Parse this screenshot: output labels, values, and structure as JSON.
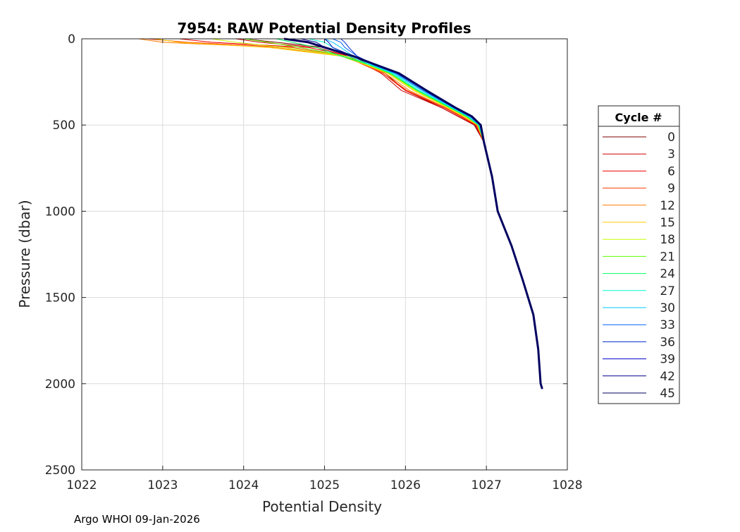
{
  "chart_data": {
    "type": "line",
    "title": "7954: RAW Potential Density Profiles",
    "xlabel": "Potential Density",
    "ylabel": "Pressure (dbar)",
    "xlim": [
      1022,
      1028
    ],
    "ylim": [
      0,
      2500
    ],
    "y_reversed": true,
    "grid": true,
    "xticks": [
      "1022",
      "1023",
      "1024",
      "1025",
      "1026",
      "1027",
      "1028"
    ],
    "yticks": [
      "0",
      "500",
      "1000",
      "1500",
      "2000",
      "2500"
    ],
    "legend": {
      "title": "Cycle #",
      "placement": "right-outside"
    },
    "pressure": [
      0,
      20,
      50,
      100,
      150,
      200,
      300,
      400,
      450,
      500,
      600,
      800,
      1000,
      1200,
      1400,
      1600,
      1800,
      2000,
      2030
    ],
    "series": [
      {
        "name": "0",
        "color": "#800000",
        "density": [
          1024.0,
          1024.4,
          1025.0,
          1025.35,
          1025.55,
          1025.75,
          1026.0,
          1026.45,
          1026.65,
          1026.85,
          1026.97,
          1027.07,
          1027.14,
          1027.31,
          1027.45,
          1027.58,
          1027.64,
          1027.67,
          1027.69
        ]
      },
      {
        "name": "3",
        "color": "#d00000",
        "density": [
          1023.9,
          1024.2,
          1024.9,
          1025.3,
          1025.5,
          1025.7,
          1025.95,
          1026.45,
          1026.65,
          1026.86,
          1026.97,
          1027.07,
          1027.14,
          1027.31,
          1027.45,
          1027.58,
          1027.64,
          1027.67,
          1027.69
        ]
      },
      {
        "name": "6",
        "color": "#f00000",
        "density": [
          1023.2,
          1023.6,
          1024.8,
          1025.3,
          1025.5,
          1025.72,
          1026.0,
          1026.48,
          1026.68,
          1026.87,
          1026.97,
          1027.07,
          1027.14,
          1027.31,
          1027.45,
          1027.58,
          1027.64,
          1027.67,
          1027.69
        ]
      },
      {
        "name": "9",
        "color": "#ff3c00",
        "density": [
          1022.8,
          1023.3,
          1024.6,
          1025.25,
          1025.48,
          1025.72,
          1026.02,
          1026.5,
          1026.7,
          1026.88,
          1026.97,
          1027.07,
          1027.14,
          1027.31,
          1027.45,
          1027.58,
          1027.64,
          1027.67,
          1027.69
        ]
      },
      {
        "name": "12",
        "color": "#ff7800",
        "density": [
          1022.7,
          1023.0,
          1024.4,
          1025.2,
          1025.5,
          1025.75,
          1026.05,
          1026.5,
          1026.7,
          1026.88,
          1026.97,
          1027.07,
          1027.14,
          1027.31,
          1027.45,
          1027.58,
          1027.64,
          1027.67,
          1027.69
        ]
      },
      {
        "name": "15",
        "color": "#ffc800",
        "density": [
          1022.9,
          1023.2,
          1024.3,
          1025.2,
          1025.5,
          1025.78,
          1026.1,
          1026.52,
          1026.72,
          1026.89,
          1026.97,
          1027.07,
          1027.14,
          1027.31,
          1027.45,
          1027.58,
          1027.64,
          1027.67,
          1027.69
        ]
      },
      {
        "name": "18",
        "color": "#c8ff00",
        "density": [
          1023.6,
          1023.9,
          1024.5,
          1025.25,
          1025.52,
          1025.8,
          1026.12,
          1026.54,
          1026.74,
          1026.9,
          1026.97,
          1027.07,
          1027.14,
          1027.31,
          1027.45,
          1027.58,
          1027.64,
          1027.67,
          1027.69
        ]
      },
      {
        "name": "21",
        "color": "#5aff00",
        "density": [
          1024.0,
          1024.3,
          1024.7,
          1025.25,
          1025.55,
          1025.8,
          1026.14,
          1026.55,
          1026.75,
          1026.9,
          1026.97,
          1027.07,
          1027.14,
          1027.31,
          1027.45,
          1027.58,
          1027.64,
          1027.67,
          1027.69
        ]
      },
      {
        "name": "24",
        "color": "#00ff64",
        "density": [
          1024.4,
          1024.6,
          1024.9,
          1025.2,
          1025.55,
          1025.82,
          1026.15,
          1026.56,
          1026.76,
          1026.9,
          1026.97,
          1027.07,
          1027.14,
          1027.31,
          1027.45,
          1027.58,
          1027.64,
          1027.67,
          1027.69
        ]
      },
      {
        "name": "27",
        "color": "#00ffd0",
        "density": [
          1024.8,
          1025.0,
          1025.1,
          1025.3,
          1025.56,
          1025.84,
          1026.17,
          1026.57,
          1026.77,
          1026.91,
          1026.97,
          1027.07,
          1027.14,
          1027.31,
          1027.45,
          1027.58,
          1027.64,
          1027.67,
          1027.69
        ]
      },
      {
        "name": "30",
        "color": "#00c8ff",
        "density": [
          1025.0,
          1025.1,
          1025.2,
          1025.35,
          1025.58,
          1025.86,
          1026.2,
          1026.58,
          1026.78,
          1026.91,
          1026.97,
          1027.07,
          1027.14,
          1027.31,
          1027.45,
          1027.58,
          1027.64,
          1027.67,
          1027.69
        ]
      },
      {
        "name": "33",
        "color": "#0064ff",
        "density": [
          1025.1,
          1025.2,
          1025.25,
          1025.4,
          1025.6,
          1025.88,
          1026.22,
          1026.6,
          1026.8,
          1026.92,
          1026.97,
          1027.07,
          1027.14,
          1027.31,
          1027.45,
          1027.58,
          1027.64,
          1027.67,
          1027.69
        ]
      },
      {
        "name": "36",
        "color": "#0028d0",
        "density": [
          1025.2,
          1025.25,
          1025.3,
          1025.4,
          1025.62,
          1025.9,
          1026.24,
          1026.6,
          1026.8,
          1026.92,
          1026.97,
          1027.07,
          1027.14,
          1027.31,
          1027.45,
          1027.58,
          1027.64,
          1027.67,
          1027.69
        ]
      },
      {
        "name": "39",
        "color": "#0000c8",
        "density": [
          1025.0,
          1025.05,
          1025.1,
          1025.35,
          1025.62,
          1025.9,
          1026.25,
          1026.62,
          1026.82,
          1026.92,
          1026.97,
          1027.07,
          1027.14,
          1027.31,
          1027.45,
          1027.58,
          1027.64,
          1027.67,
          1027.69
        ]
      },
      {
        "name": "42",
        "color": "#000090",
        "density": [
          1024.7,
          1024.9,
          1025.0,
          1025.35,
          1025.62,
          1025.9,
          1026.25,
          1026.62,
          1026.82,
          1026.92,
          1026.97,
          1027.07,
          1027.14,
          1027.31,
          1027.45,
          1027.58,
          1027.64,
          1027.67,
          1027.69
        ]
      },
      {
        "name": "45",
        "color": "#000060",
        "density": [
          1024.5,
          1024.8,
          1025.0,
          1025.35,
          1025.63,
          1025.92,
          1026.26,
          1026.62,
          1026.82,
          1026.93,
          1026.97,
          1027.07,
          1027.14,
          1027.31,
          1027.45,
          1027.58,
          1027.64,
          1027.67,
          1027.69
        ]
      }
    ]
  },
  "footer": "Argo WHOI 09-Jan-2026"
}
